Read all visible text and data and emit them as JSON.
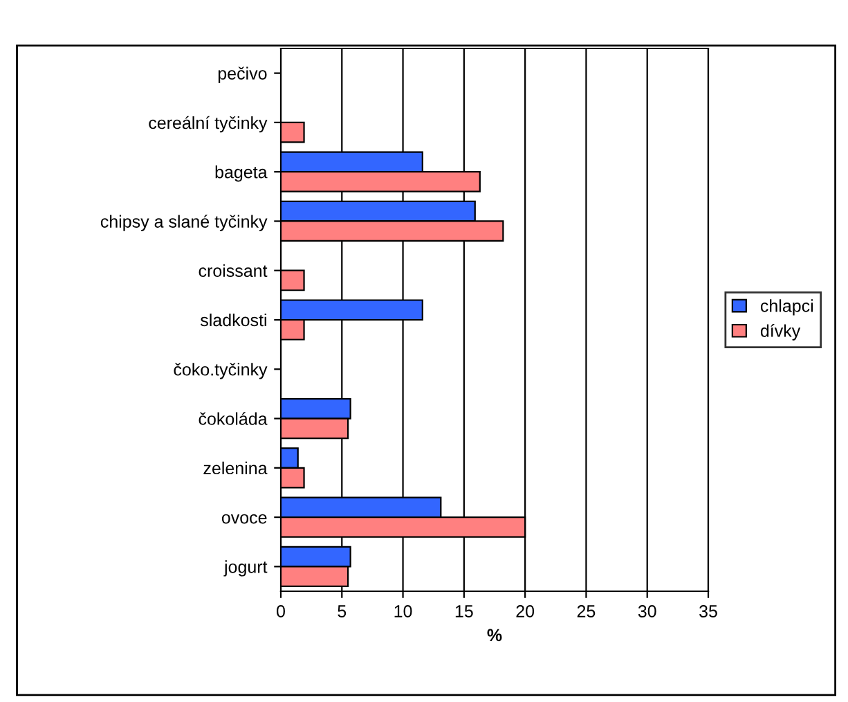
{
  "chart_data": {
    "type": "bar",
    "orientation": "horizontal",
    "xlabel": "%",
    "categories": [
      "pečivo",
      "cereální tyčinky",
      "bageta",
      "chipsy a slané tyčinky",
      "croissant",
      "sladkosti",
      "čoko.tyčinky",
      "čokoláda",
      "zelenina",
      "ovoce",
      "jogurt"
    ],
    "series": [
      {
        "name": "chlapci",
        "color": "#3366ff",
        "values": [
          null,
          null,
          11.6,
          15.9,
          null,
          11.6,
          null,
          5.7,
          1.4,
          13.1,
          5.7
        ]
      },
      {
        "name": "dívky",
        "color": "#ff8080",
        "values": [
          null,
          1.9,
          16.3,
          18.2,
          1.9,
          1.9,
          null,
          5.5,
          1.9,
          20,
          5.5
        ]
      }
    ],
    "xlim": [
      0,
      35
    ],
    "xticks": [
      0,
      5,
      10,
      15,
      20,
      25,
      30,
      35
    ],
    "grid": "x",
    "legend": "right"
  }
}
